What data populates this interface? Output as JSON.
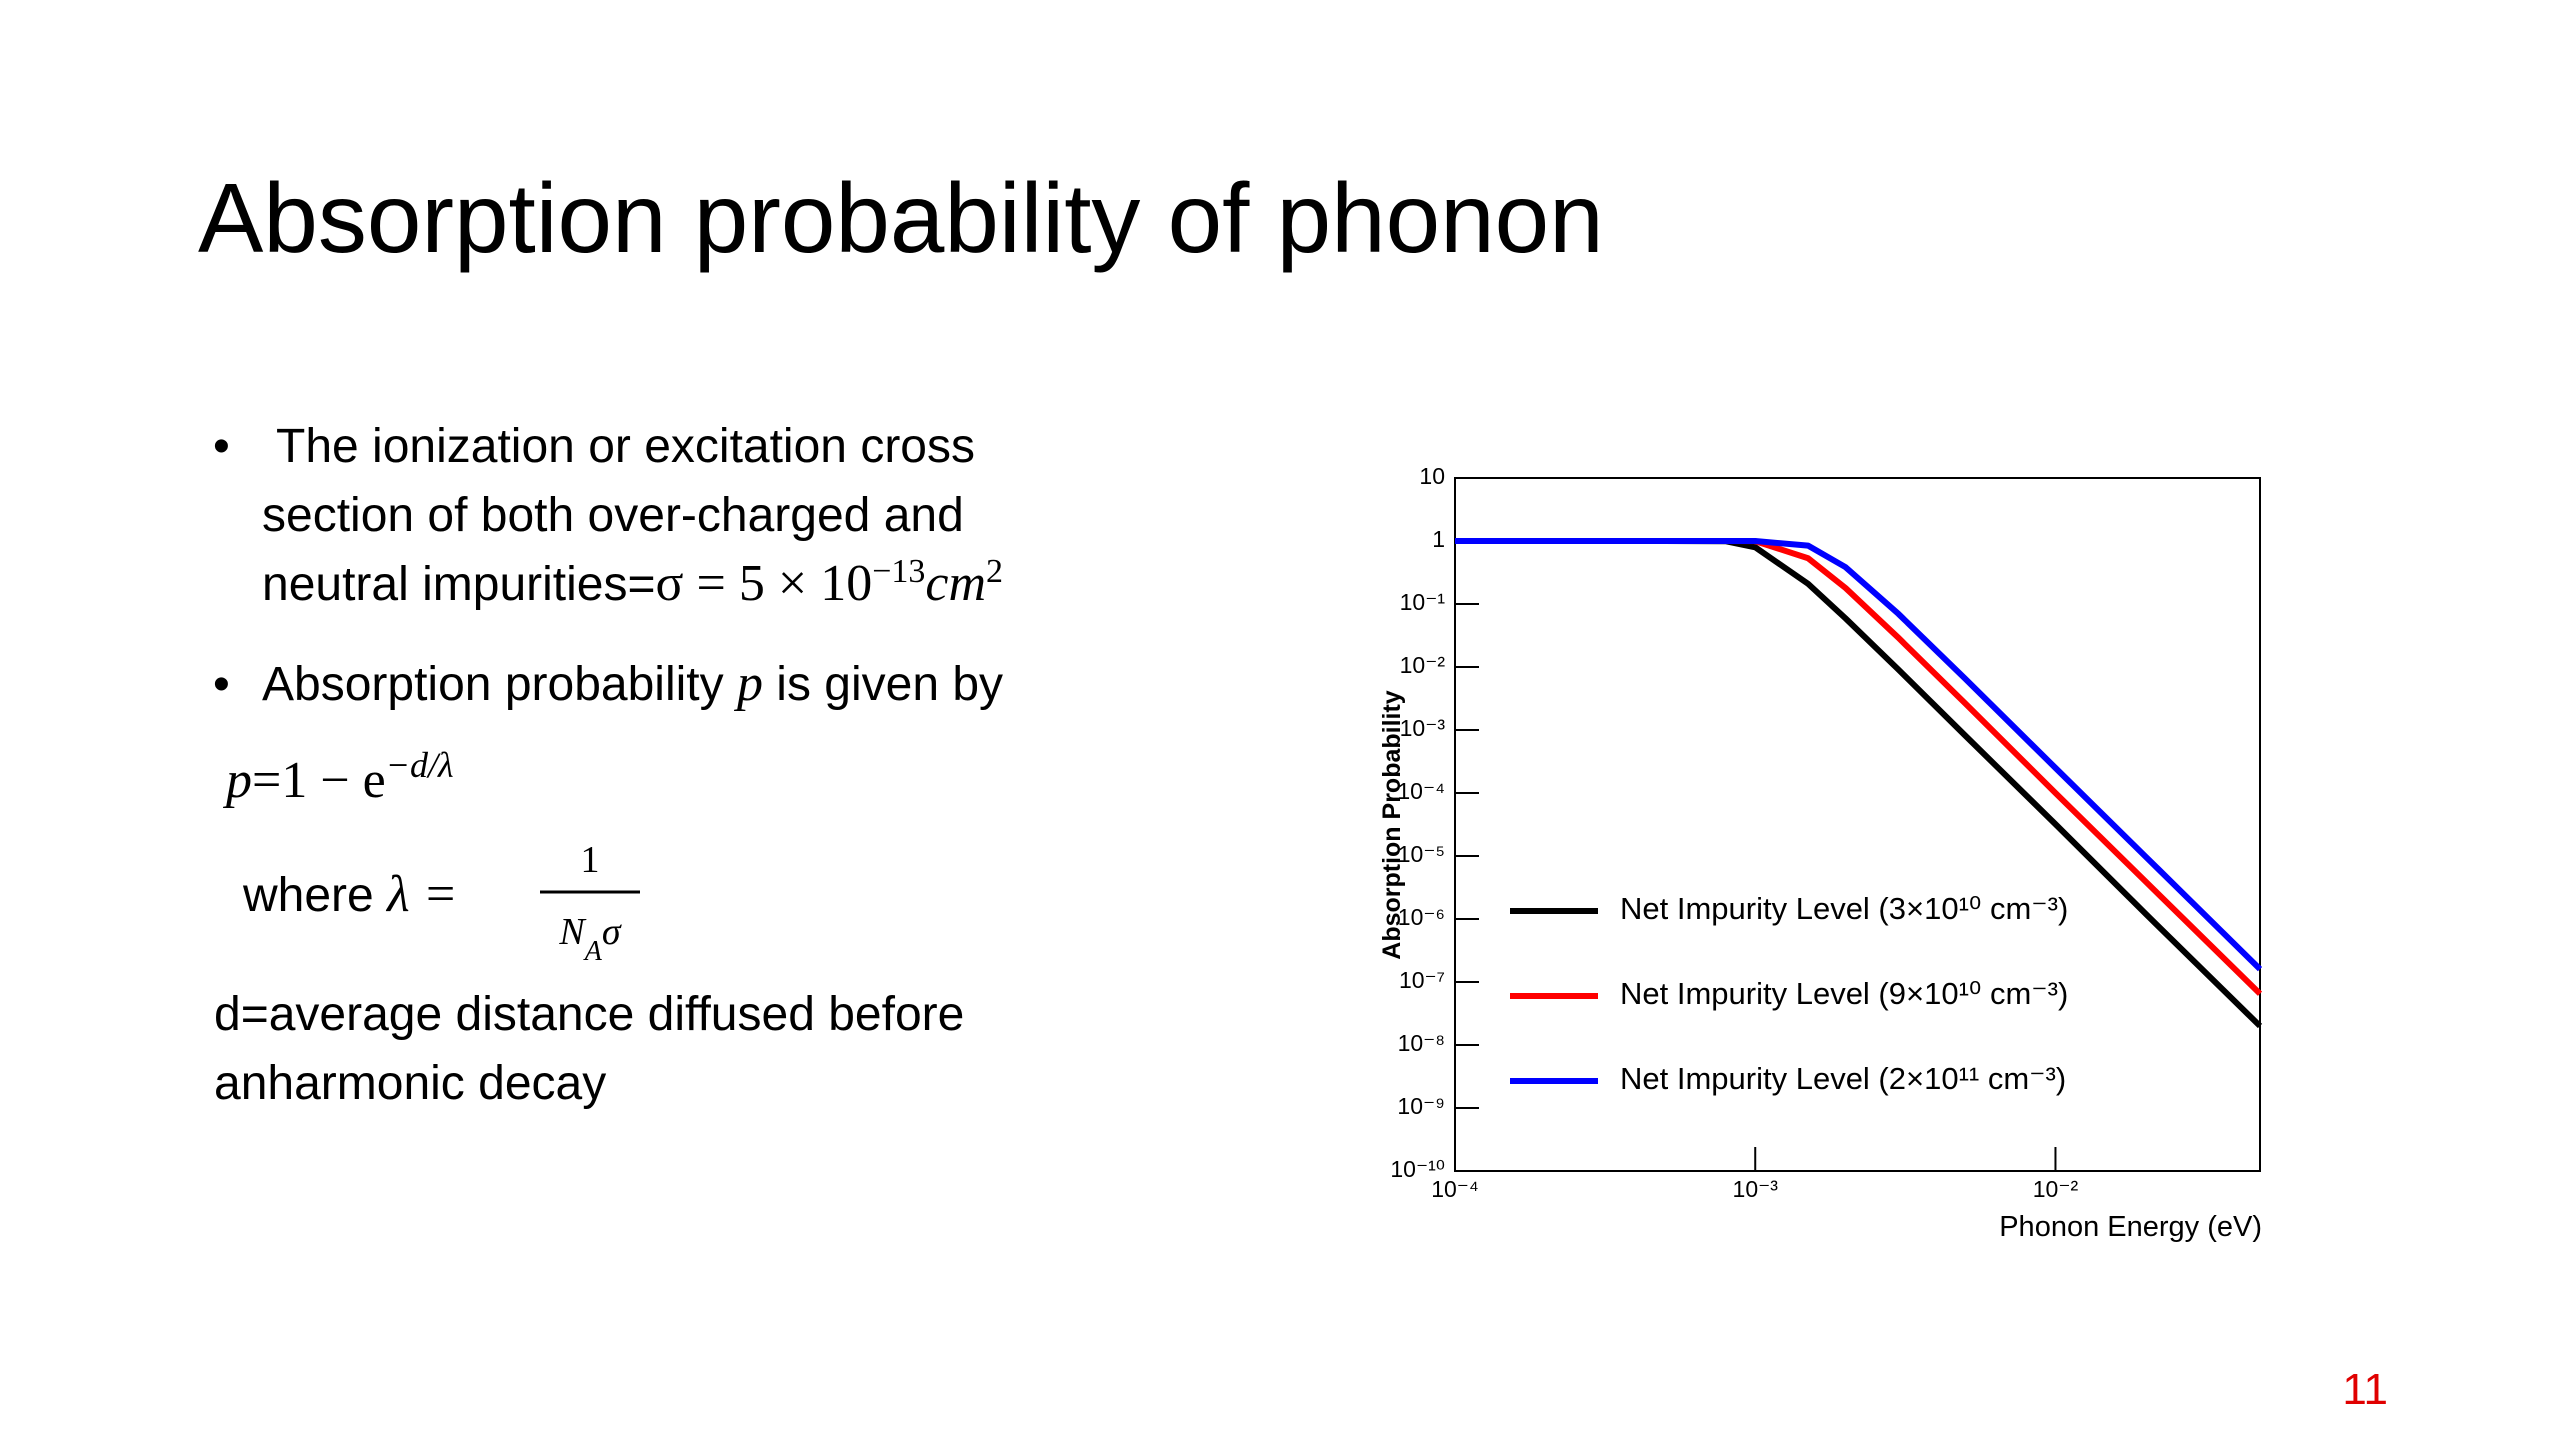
{
  "slide": {
    "title": "Absorption probability of phonon",
    "bullets": [
      {
        "lines": [
          "The ionization or excitation cross",
          "section of both over-charged and",
          "neutral impurities="
        ],
        "math": "σ = 5 × 10",
        "exponent": "−13",
        "unit": "cm",
        "unit_exponent": "2"
      },
      {
        "text": "Absorption probability ",
        "math": "p",
        "text_after": " is given by"
      }
    ],
    "equation": {
      "lhs": "p",
      "rest": "=1 − e",
      "exponent": "−d/λ"
    },
    "where": {
      "text": "where ",
      "lhs": "λ =",
      "numerator": "1",
      "denominator": "N",
      "subscript": "A",
      "denominator_after": "σ"
    },
    "note": [
      "d=average distance diffused before",
      "anharmonic decay"
    ],
    "page_number": "11"
  },
  "chart_data": {
    "type": "line",
    "xlabel": "Phonon Energy (eV)",
    "ylabel": "Absorption Probability",
    "xscale": "log",
    "yscale": "log",
    "x": [
      0.0001,
      0.0005,
      0.0008,
      0.001,
      0.0015,
      0.002,
      0.003,
      0.005,
      0.01,
      0.02,
      0.048
    ],
    "series": [
      {
        "name": "Net Impurity Level (3×10¹⁰ cm⁻³)",
        "color": "#000000",
        "values": [
          1,
          1,
          0.989,
          0.795,
          0.209,
          0.059,
          0.00908,
          0.00082,
          3.2e-05,
          1.2e-06,
          2e-08
        ]
      },
      {
        "name": "Net Impurity Level (9×10¹⁰ cm⁻³)",
        "color": "#ff0000",
        "values": [
          1,
          1,
          1,
          0.994,
          0.532,
          0.179,
          0.029,
          0.00266,
          0.0001,
          3.9e-06,
          6.5e-08
        ]
      },
      {
        "name": "Net Impurity Level (2×10¹¹ cm⁻³)",
        "color": "#0000ff",
        "values": [
          1,
          1,
          1,
          1,
          0.844,
          0.384,
          0.0696,
          0.00653,
          0.00025,
          9.7e-06,
          1.6e-07
        ]
      }
    ],
    "xlim": [
      0.0001,
      0.048
    ],
    "ylim": [
      1e-10,
      10
    ],
    "xticks": [
      {
        "value": 0.0001,
        "label": "10⁻⁴"
      },
      {
        "value": 0.001,
        "label": "10⁻³"
      },
      {
        "value": 0.01,
        "label": "10⁻²"
      }
    ],
    "yticks": [
      {
        "value": 1e-10,
        "label": "10⁻¹⁰"
      },
      {
        "value": 1e-09,
        "label": "10⁻⁹"
      },
      {
        "value": 1e-08,
        "label": "10⁻⁸"
      },
      {
        "value": 1e-07,
        "label": "10⁻⁷"
      },
      {
        "value": 1e-06,
        "label": "10⁻⁶"
      },
      {
        "value": 1e-05,
        "label": "10⁻⁵"
      },
      {
        "value": 0.0001,
        "label": "10⁻⁴"
      },
      {
        "value": 0.001,
        "label": "10⁻³"
      },
      {
        "value": 0.01,
        "label": "10⁻²"
      },
      {
        "value": 0.1,
        "label": "10⁻¹"
      },
      1,
      10
    ],
    "legend": "lower left"
  }
}
